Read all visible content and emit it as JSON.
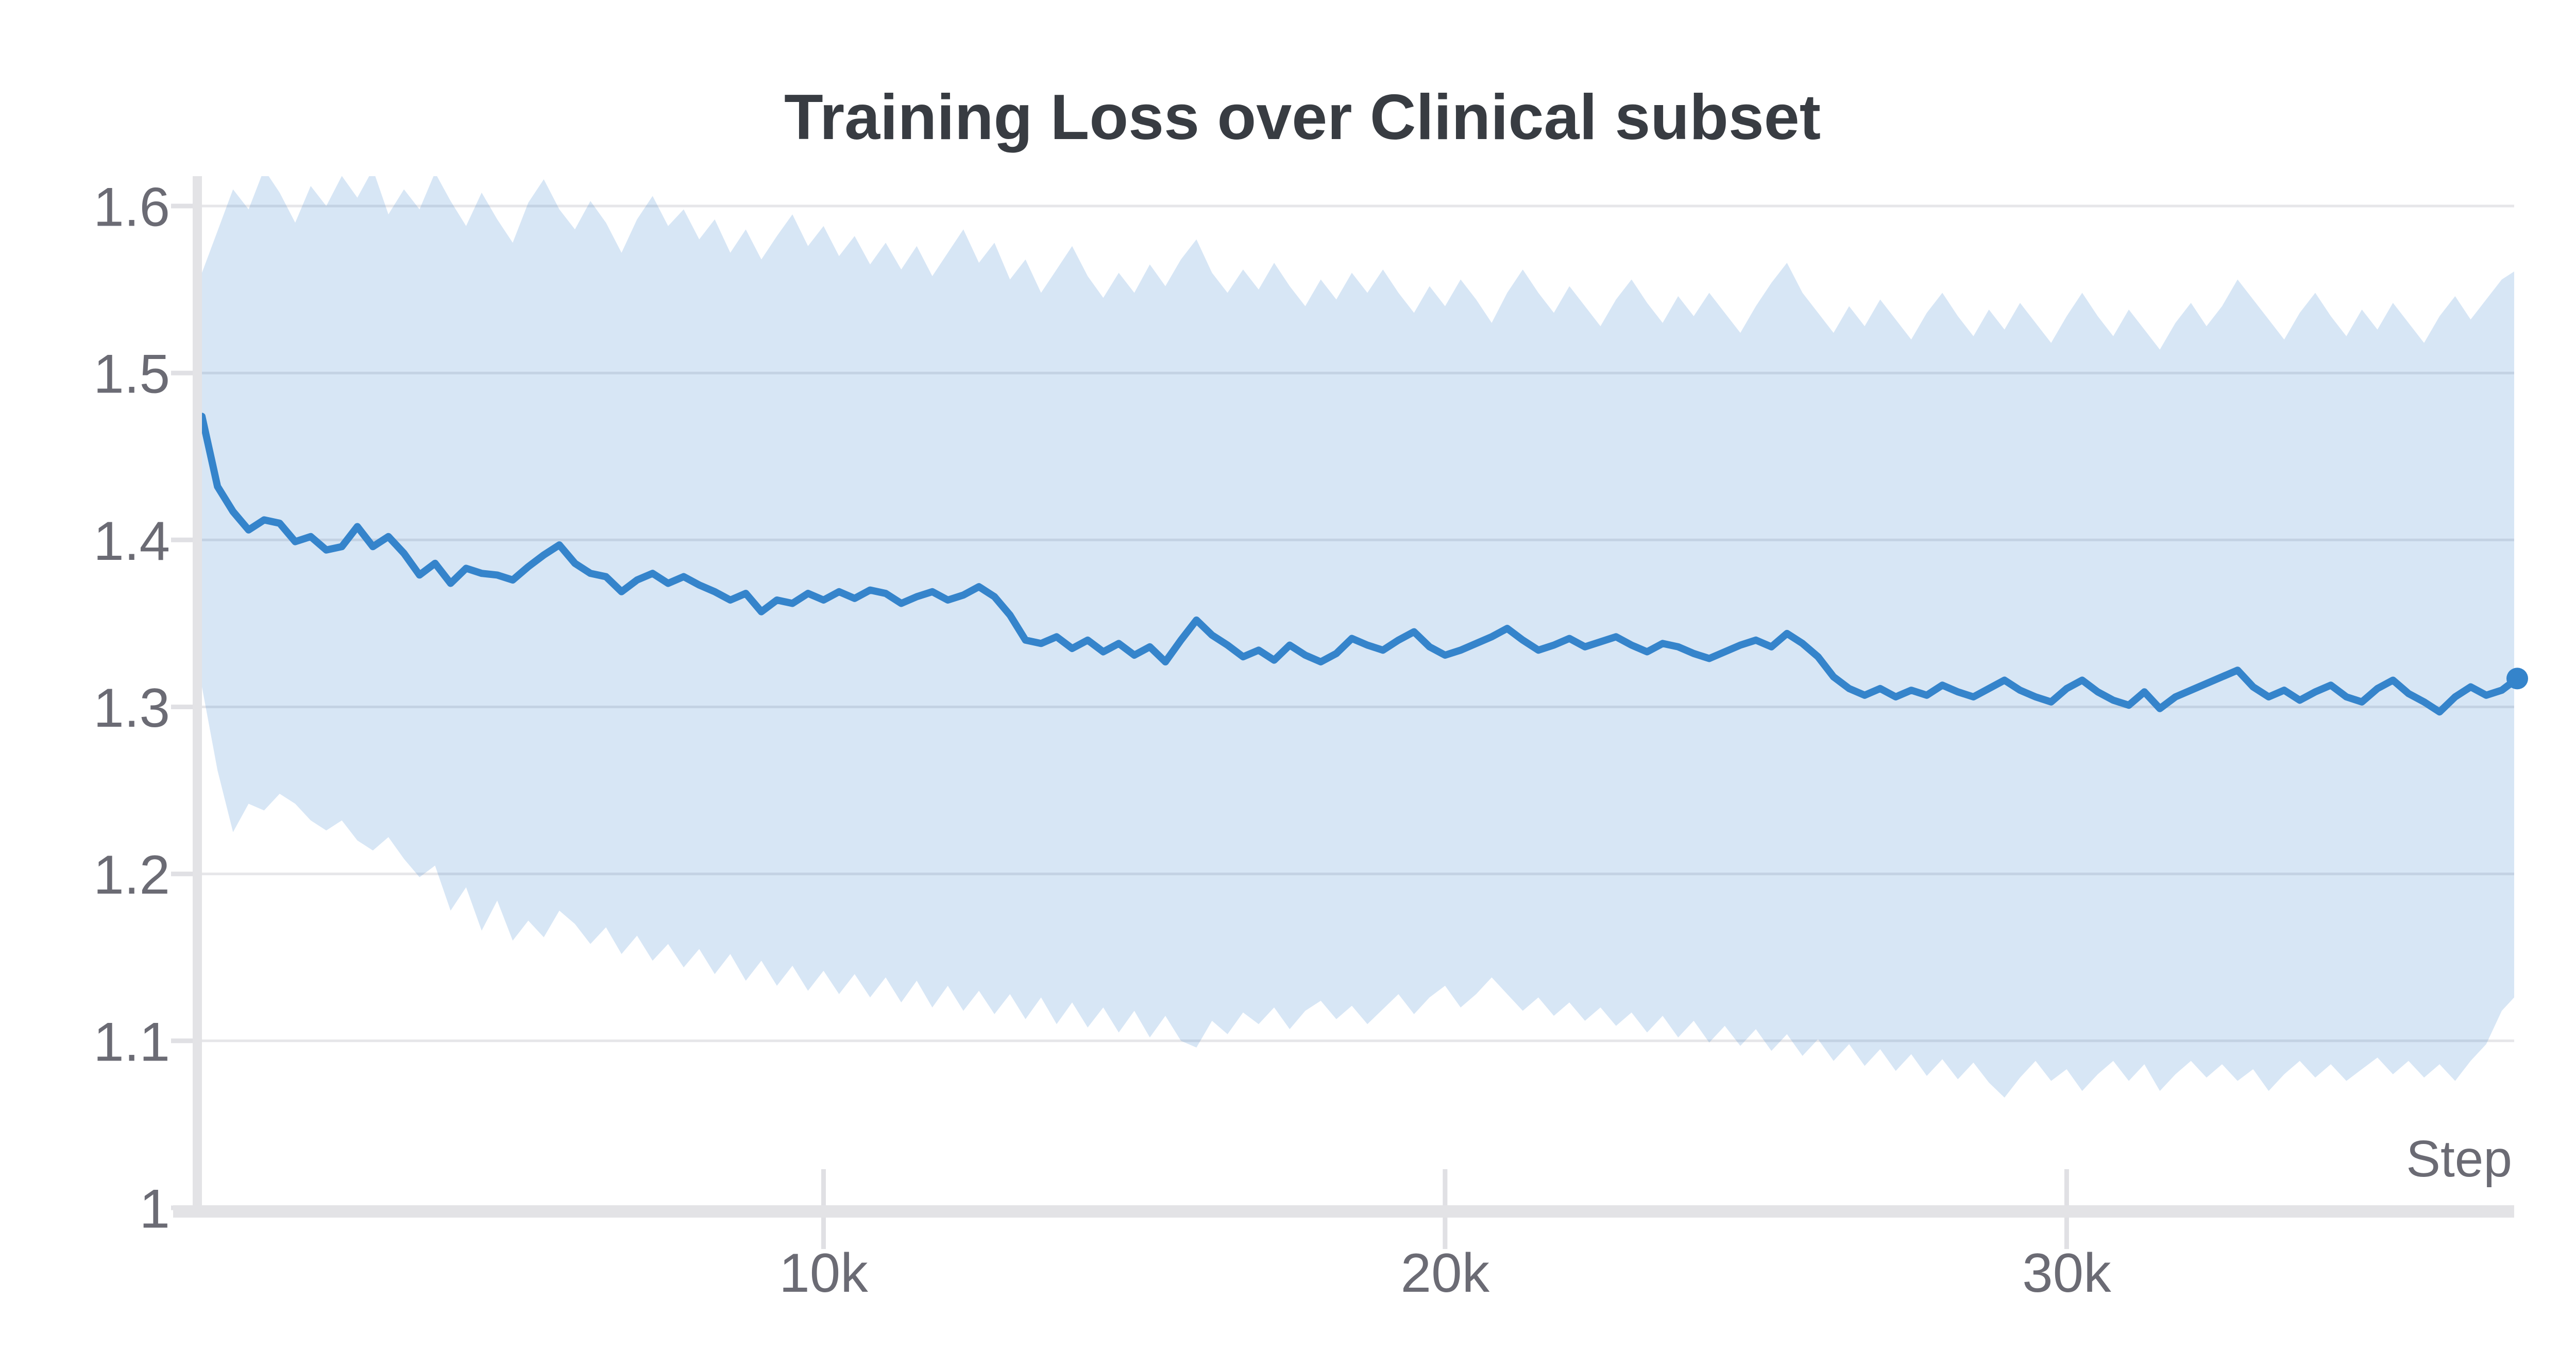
{
  "chart": {
    "title": "Training Loss over Clinical subset",
    "colors": {
      "line": "#3584cb",
      "band_opacity": 0.2,
      "grid": "#e6e6e9",
      "axis": "#e3e3e6",
      "tick": "#e0e0e4",
      "tick_text": "#6b6b74",
      "title_text": "#383c42",
      "background": "#ffffff"
    },
    "y_axis": {
      "ticks": [
        {
          "label": "1.6",
          "value": 1.6
        },
        {
          "label": "1.5",
          "value": 1.5
        },
        {
          "label": "1.4",
          "value": 1.4
        },
        {
          "label": "1.3",
          "value": 1.3
        },
        {
          "label": "1.2",
          "value": 1.2
        },
        {
          "label": "1.1",
          "value": 1.1
        },
        {
          "label": "1",
          "value": 1.0
        }
      ]
    },
    "x_axis": {
      "label": "Step",
      "ticks": [
        {
          "label": "10k",
          "value": 10000
        },
        {
          "label": "20k",
          "value": 20000
        },
        {
          "label": "30k",
          "value": 30000
        }
      ]
    },
    "end_dot": {
      "step": 37250,
      "value": 1.317
    }
  },
  "chart_data": {
    "type": "line",
    "title": "Training Loss over Clinical subset",
    "xlabel": "Step",
    "ylabel": "",
    "x_start": 0,
    "x_interval": 250,
    "xlim": [
      0,
      37250
    ],
    "ylim": [
      1.0,
      1.618
    ],
    "grid": "horizontal",
    "legend": "none",
    "series": [
      {
        "name": "mean_loss",
        "values": [
          1.474,
          1.432,
          1.417,
          1.406,
          1.412,
          1.41,
          1.399,
          1.402,
          1.394,
          1.396,
          1.408,
          1.396,
          1.402,
          1.392,
          1.379,
          1.386,
          1.374,
          1.383,
          1.38,
          1.379,
          1.376,
          1.384,
          1.391,
          1.397,
          1.386,
          1.38,
          1.378,
          1.369,
          1.376,
          1.38,
          1.374,
          1.378,
          1.373,
          1.369,
          1.364,
          1.368,
          1.357,
          1.364,
          1.362,
          1.368,
          1.364,
          1.369,
          1.365,
          1.37,
          1.368,
          1.362,
          1.366,
          1.369,
          1.364,
          1.367,
          1.372,
          1.366,
          1.355,
          1.34,
          1.338,
          1.342,
          1.335,
          1.34,
          1.333,
          1.338,
          1.331,
          1.336,
          1.327,
          1.34,
          1.352,
          1.343,
          1.337,
          1.33,
          1.334,
          1.328,
          1.337,
          1.331,
          1.327,
          1.332,
          1.341,
          1.337,
          1.334,
          1.34,
          1.345,
          1.336,
          1.331,
          1.334,
          1.338,
          1.342,
          1.347,
          1.34,
          1.334,
          1.337,
          1.341,
          1.336,
          1.339,
          1.342,
          1.337,
          1.333,
          1.338,
          1.336,
          1.332,
          1.329,
          1.333,
          1.337,
          1.34,
          1.336,
          1.344,
          1.338,
          1.33,
          1.318,
          1.311,
          1.307,
          1.311,
          1.306,
          1.31,
          1.307,
          1.313,
          1.309,
          1.306,
          1.311,
          1.316,
          1.31,
          1.306,
          1.303,
          1.311,
          1.316,
          1.309,
          1.304,
          1.301,
          1.309,
          1.299,
          1.306,
          1.31,
          1.314,
          1.318,
          1.322,
          1.312,
          1.306,
          1.31,
          1.304,
          1.309,
          1.313,
          1.306,
          1.303,
          1.311,
          1.316,
          1.308,
          1.303,
          1.297,
          1.306,
          1.312,
          1.307,
          1.31,
          1.317
        ]
      },
      {
        "name": "band_lower",
        "values": [
          1.312,
          1.262,
          1.225,
          1.242,
          1.238,
          1.248,
          1.242,
          1.232,
          1.226,
          1.232,
          1.22,
          1.214,
          1.222,
          1.209,
          1.198,
          1.205,
          1.178,
          1.192,
          1.166,
          1.184,
          1.16,
          1.172,
          1.162,
          1.178,
          1.17,
          1.158,
          1.168,
          1.152,
          1.163,
          1.148,
          1.158,
          1.144,
          1.155,
          1.14,
          1.152,
          1.136,
          1.148,
          1.133,
          1.145,
          1.13,
          1.142,
          1.128,
          1.14,
          1.126,
          1.138,
          1.123,
          1.136,
          1.12,
          1.133,
          1.118,
          1.13,
          1.116,
          1.128,
          1.113,
          1.126,
          1.11,
          1.123,
          1.108,
          1.12,
          1.105,
          1.118,
          1.102,
          1.115,
          1.1,
          1.096,
          1.112,
          1.104,
          1.117,
          1.11,
          1.12,
          1.107,
          1.118,
          1.124,
          1.113,
          1.121,
          1.11,
          1.119,
          1.128,
          1.116,
          1.126,
          1.133,
          1.12,
          1.128,
          1.138,
          1.128,
          1.118,
          1.126,
          1.115,
          1.123,
          1.112,
          1.12,
          1.109,
          1.117,
          1.105,
          1.115,
          1.102,
          1.112,
          1.099,
          1.109,
          1.097,
          1.107,
          1.094,
          1.104,
          1.091,
          1.101,
          1.088,
          1.098,
          1.085,
          1.095,
          1.082,
          1.092,
          1.079,
          1.089,
          1.077,
          1.087,
          1.075,
          1.066,
          1.078,
          1.088,
          1.076,
          1.083,
          1.07,
          1.08,
          1.088,
          1.076,
          1.086,
          1.07,
          1.08,
          1.088,
          1.078,
          1.086,
          1.076,
          1.083,
          1.07,
          1.08,
          1.088,
          1.078,
          1.086,
          1.076,
          1.083,
          1.09,
          1.08,
          1.088,
          1.078,
          1.086,
          1.076,
          1.088,
          1.098,
          1.118,
          1.128
        ]
      },
      {
        "name": "band_upper",
        "values": [
          1.56,
          1.585,
          1.61,
          1.598,
          1.622,
          1.608,
          1.59,
          1.612,
          1.6,
          1.618,
          1.605,
          1.622,
          1.595,
          1.61,
          1.598,
          1.62,
          1.603,
          1.588,
          1.608,
          1.592,
          1.578,
          1.602,
          1.616,
          1.598,
          1.586,
          1.603,
          1.59,
          1.572,
          1.592,
          1.606,
          1.588,
          1.598,
          1.58,
          1.592,
          1.572,
          1.586,
          1.568,
          1.582,
          1.595,
          1.576,
          1.588,
          1.57,
          1.582,
          1.565,
          1.578,
          1.562,
          1.576,
          1.558,
          1.572,
          1.586,
          1.566,
          1.578,
          1.556,
          1.568,
          1.548,
          1.562,
          1.576,
          1.558,
          1.545,
          1.56,
          1.548,
          1.565,
          1.552,
          1.568,
          1.58,
          1.56,
          1.548,
          1.562,
          1.55,
          1.566,
          1.552,
          1.54,
          1.556,
          1.544,
          1.56,
          1.548,
          1.562,
          1.548,
          1.536,
          1.552,
          1.54,
          1.556,
          1.544,
          1.53,
          1.548,
          1.562,
          1.548,
          1.536,
          1.552,
          1.54,
          1.528,
          1.544,
          1.556,
          1.542,
          1.53,
          1.546,
          1.534,
          1.548,
          1.536,
          1.524,
          1.54,
          1.554,
          1.566,
          1.548,
          1.536,
          1.524,
          1.54,
          1.528,
          1.544,
          1.532,
          1.52,
          1.536,
          1.548,
          1.534,
          1.522,
          1.538,
          1.526,
          1.542,
          1.53,
          1.518,
          1.534,
          1.548,
          1.534,
          1.522,
          1.538,
          1.526,
          1.514,
          1.53,
          1.542,
          1.528,
          1.54,
          1.556,
          1.544,
          1.532,
          1.52,
          1.536,
          1.548,
          1.534,
          1.522,
          1.538,
          1.526,
          1.542,
          1.53,
          1.518,
          1.534,
          1.546,
          1.532,
          1.544,
          1.556,
          1.562
        ]
      }
    ]
  }
}
